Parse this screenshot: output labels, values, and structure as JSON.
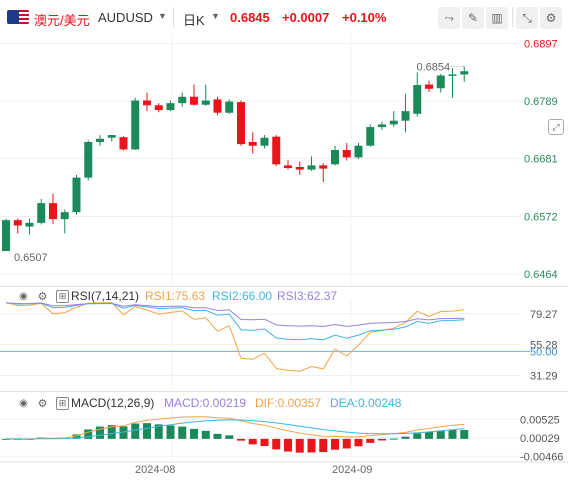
{
  "header": {
    "symbol_cn": "澳元/美元",
    "symbol": "AUDUSD",
    "period": "日K",
    "price": "0.6845",
    "change": "+0.0007",
    "change_pct": "+0.10%"
  },
  "colors": {
    "up": "#1a8a5a",
    "down": "#e8151b",
    "rsi1": "#f5a347",
    "rsi2": "#3fb6e0",
    "rsi3": "#9a7fe0",
    "macd_line": "#f5a347",
    "dea_line": "#3fb6e0",
    "level": "#6ab0ff"
  },
  "rsi": {
    "title": "RSI(7,14,21)",
    "rsi1": "RSI1:75.63",
    "rsi2": "RSI2:66.00",
    "rsi3": "RSI3:62.37"
  },
  "macd": {
    "title": "MACD(12,26,9)",
    "macd": "MACD:0.00219",
    "dif": "DIF:0.00357",
    "dea": "DEA:0.00248"
  },
  "chart_data": {
    "type": "candlestick",
    "price_axis": {
      "ticks": [
        "0.6897",
        "0.6789",
        "0.6681",
        "0.6572",
        "0.6464"
      ],
      "range": [
        0.6445,
        0.6915
      ]
    },
    "annotations": {
      "high": "0.6854",
      "low": "0.6507"
    },
    "x_ticks": [
      "2024-08",
      "2024-09"
    ],
    "candles": [
      {
        "o": 0.6507,
        "h": 0.6568,
        "l": 0.6507,
        "c": 0.6565
      },
      {
        "o": 0.6565,
        "h": 0.6568,
        "l": 0.654,
        "c": 0.6555
      },
      {
        "o": 0.6553,
        "h": 0.6568,
        "l": 0.6538,
        "c": 0.656
      },
      {
        "o": 0.656,
        "h": 0.6605,
        "l": 0.6557,
        "c": 0.6597
      },
      {
        "o": 0.6597,
        "h": 0.6615,
        "l": 0.6558,
        "c": 0.6567
      },
      {
        "o": 0.6567,
        "h": 0.6585,
        "l": 0.654,
        "c": 0.658
      },
      {
        "o": 0.658,
        "h": 0.665,
        "l": 0.6575,
        "c": 0.6645
      },
      {
        "o": 0.6645,
        "h": 0.6715,
        "l": 0.664,
        "c": 0.6712
      },
      {
        "o": 0.6712,
        "h": 0.6725,
        "l": 0.6705,
        "c": 0.6718
      },
      {
        "o": 0.672,
        "h": 0.6725,
        "l": 0.6713,
        "c": 0.6725
      },
      {
        "o": 0.6721,
        "h": 0.6723,
        "l": 0.6696,
        "c": 0.6698
      },
      {
        "o": 0.6698,
        "h": 0.6795,
        "l": 0.6697,
        "c": 0.679
      },
      {
        "o": 0.679,
        "h": 0.6805,
        "l": 0.677,
        "c": 0.6781
      },
      {
        "o": 0.6781,
        "h": 0.6785,
        "l": 0.6768,
        "c": 0.6772
      },
      {
        "o": 0.6772,
        "h": 0.679,
        "l": 0.677,
        "c": 0.6785
      },
      {
        "o": 0.6785,
        "h": 0.6805,
        "l": 0.6778,
        "c": 0.6797
      },
      {
        "o": 0.6797,
        "h": 0.682,
        "l": 0.678,
        "c": 0.6782
      },
      {
        "o": 0.6782,
        "h": 0.682,
        "l": 0.678,
        "c": 0.679
      },
      {
        "o": 0.6792,
        "h": 0.6797,
        "l": 0.6762,
        "c": 0.6767
      },
      {
        "o": 0.6767,
        "h": 0.6792,
        "l": 0.6765,
        "c": 0.6788
      },
      {
        "o": 0.6787,
        "h": 0.679,
        "l": 0.6705,
        "c": 0.6708
      },
      {
        "o": 0.6712,
        "h": 0.673,
        "l": 0.669,
        "c": 0.6705
      },
      {
        "o": 0.6705,
        "h": 0.6725,
        "l": 0.67,
        "c": 0.672
      },
      {
        "o": 0.6722,
        "h": 0.6725,
        "l": 0.6667,
        "c": 0.667
      },
      {
        "o": 0.6668,
        "h": 0.6678,
        "l": 0.666,
        "c": 0.6663
      },
      {
        "o": 0.6665,
        "h": 0.6675,
        "l": 0.665,
        "c": 0.666
      },
      {
        "o": 0.666,
        "h": 0.6685,
        "l": 0.6658,
        "c": 0.6668
      },
      {
        "o": 0.6668,
        "h": 0.6672,
        "l": 0.6637,
        "c": 0.6662
      },
      {
        "o": 0.667,
        "h": 0.6705,
        "l": 0.6668,
        "c": 0.6697
      },
      {
        "o": 0.6697,
        "h": 0.671,
        "l": 0.6677,
        "c": 0.6683
      },
      {
        "o": 0.6683,
        "h": 0.671,
        "l": 0.668,
        "c": 0.6705
      },
      {
        "o": 0.6705,
        "h": 0.6745,
        "l": 0.6703,
        "c": 0.674
      },
      {
        "o": 0.674,
        "h": 0.675,
        "l": 0.6735,
        "c": 0.6745
      },
      {
        "o": 0.6745,
        "h": 0.677,
        "l": 0.674,
        "c": 0.6752
      },
      {
        "o": 0.6752,
        "h": 0.6803,
        "l": 0.673,
        "c": 0.677
      },
      {
        "o": 0.6765,
        "h": 0.6843,
        "l": 0.676,
        "c": 0.6819
      },
      {
        "o": 0.682,
        "h": 0.6827,
        "l": 0.6806,
        "c": 0.6812
      },
      {
        "o": 0.6813,
        "h": 0.684,
        "l": 0.6805,
        "c": 0.6837
      },
      {
        "o": 0.6837,
        "h": 0.6851,
        "l": 0.6795,
        "c": 0.6839
      },
      {
        "o": 0.6839,
        "h": 0.6854,
        "l": 0.6825,
        "c": 0.6845
      }
    ],
    "rsi_axis": {
      "ticks": [
        "79.27",
        "55.28",
        "50.00",
        "31.29"
      ]
    },
    "macd_axis": {
      "ticks": [
        "0.00525",
        "0.00029",
        "-0.00466"
      ]
    }
  }
}
